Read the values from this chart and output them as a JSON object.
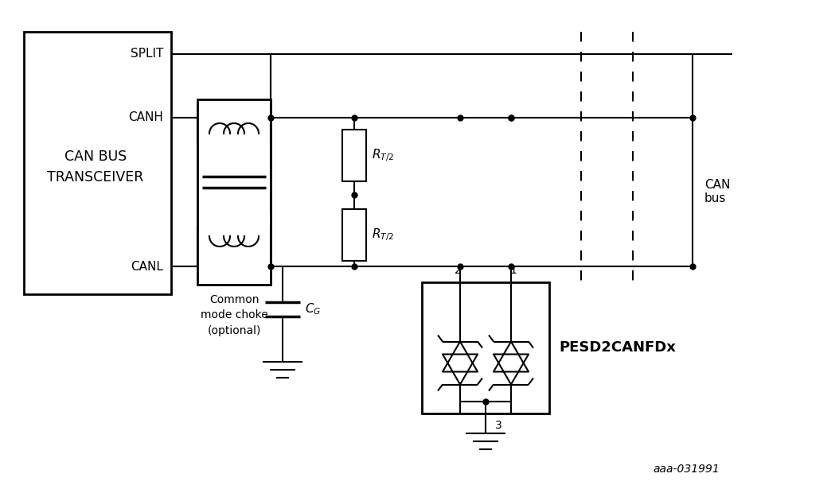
{
  "bg_color": "#ffffff",
  "line_color": "#000000",
  "lw": 1.5,
  "lw2": 2.0,
  "dot_size": 5,
  "fig_width": 10.54,
  "fig_height": 6.2,
  "label_SPLIT": "SPLIT",
  "label_CANH": "CANH",
  "label_CANL": "CANL",
  "label_transceiver": "CAN BUS\nTRANSCEIVER",
  "label_choke": "Common\nmode choke\n(optional)",
  "label_device": "PESD2CANFDx",
  "label_CAN": "CAN\nbus",
  "label_ref": "aaa-031991"
}
